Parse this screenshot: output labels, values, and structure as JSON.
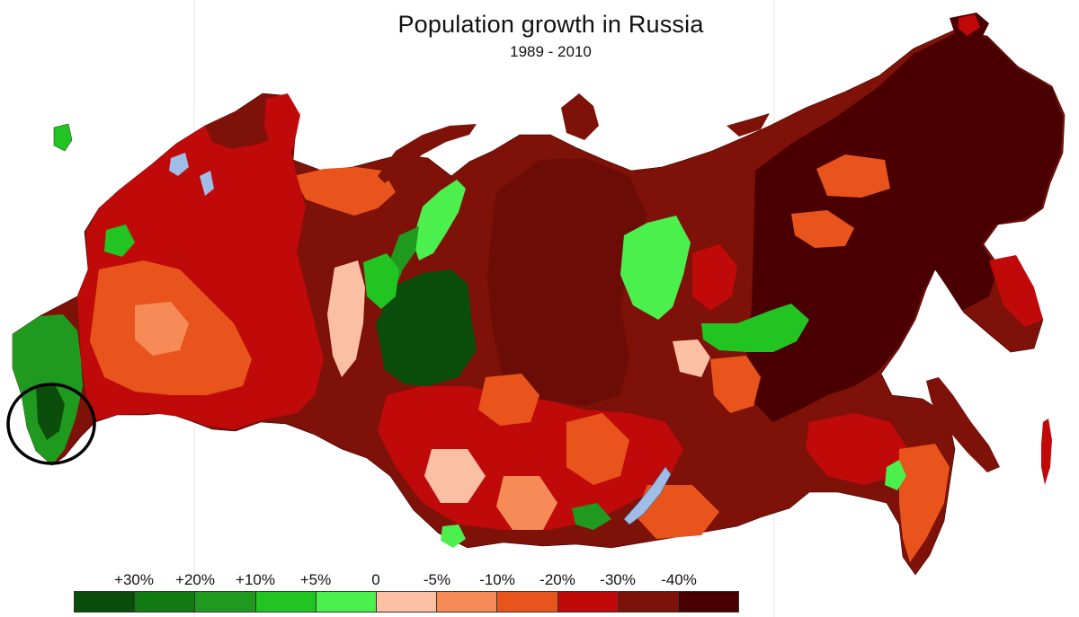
{
  "title": "Population growth in Russia",
  "subtitle": "1989 - 2010",
  "legend": {
    "labels": [
      "+30%",
      "+20%",
      "+10%",
      "+5%",
      "0",
      "-5%",
      "-10%",
      "-20%",
      "-30%",
      "-40%"
    ],
    "colors": [
      "#0b4d0b",
      "#127a12",
      "#1f9a1f",
      "#22c422",
      "#4cf04c",
      "#fbbfa3",
      "#f68b57",
      "#e8541c",
      "#c00a0a",
      "#7e1108",
      "#4a0000"
    ]
  },
  "palette": {
    "dark_green": "#0b4d0b",
    "green": "#1f9a1f",
    "light_green": "#4cf04c",
    "pink": "#fbbfa3",
    "orange": "#f68b57",
    "deep_orange": "#e8541c",
    "red": "#c00a0a",
    "maroon": "#7e1108",
    "dark_maroon": "#4a0000"
  }
}
